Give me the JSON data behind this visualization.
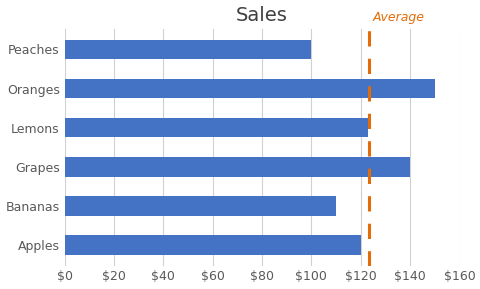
{
  "categories": [
    "Apples",
    "Bananas",
    "Grapes",
    "Lemons",
    "Oranges",
    "Peaches"
  ],
  "values": [
    120,
    110,
    140,
    123,
    150,
    100
  ],
  "bar_color": "#4472C4",
  "average_value": 123.5,
  "average_line_color": "#E36C0A",
  "average_label": "Average",
  "title": "Sales",
  "xlim": [
    0,
    160
  ],
  "xtick_values": [
    0,
    20,
    40,
    60,
    80,
    100,
    120,
    140,
    160
  ],
  "background_color": "#FFFFFF",
  "plot_bg_color": "#FFFFFF",
  "title_fontsize": 14,
  "label_fontsize": 9,
  "tick_fontsize": 9,
  "bar_height": 0.5,
  "figwidth": 4.81,
  "figheight": 2.89,
  "dpi": 100
}
